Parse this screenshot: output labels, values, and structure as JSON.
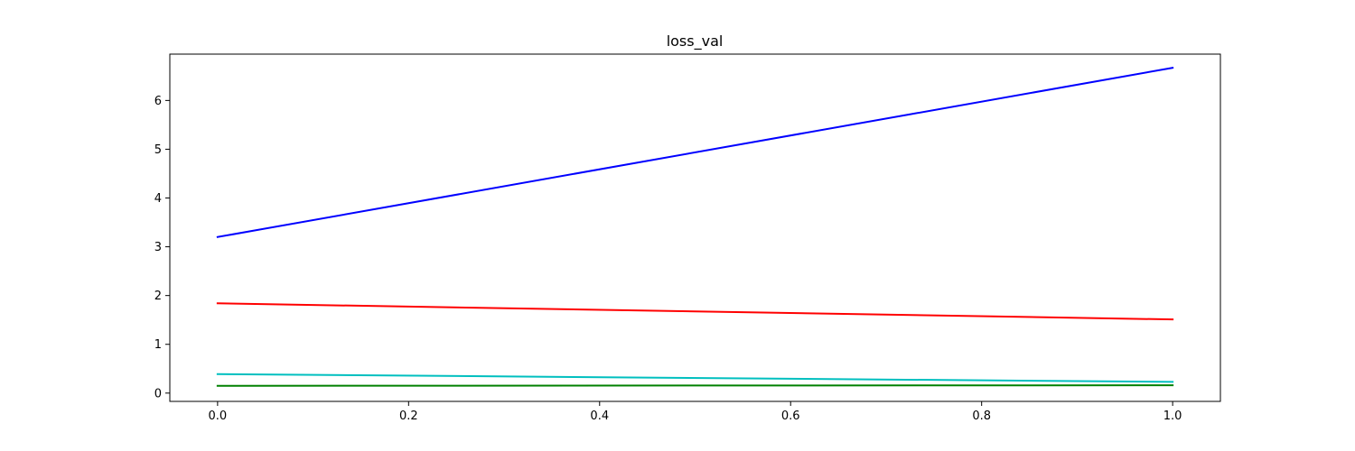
{
  "chart_data": {
    "type": "line",
    "title": "loss_val",
    "xlabel": "",
    "ylabel": "",
    "xlim": [
      -0.05,
      1.05
    ],
    "ylim": [
      -0.17,
      6.95
    ],
    "xticks": [
      0.0,
      0.2,
      0.4,
      0.6,
      0.8,
      1.0
    ],
    "xtick_labels": [
      "0.0",
      "0.2",
      "0.4",
      "0.6",
      "0.8",
      "1.0"
    ],
    "yticks": [
      0,
      1,
      2,
      3,
      4,
      5,
      6
    ],
    "ytick_labels": [
      "0",
      "1",
      "2",
      "3",
      "4",
      "5",
      "6"
    ],
    "grid": false,
    "legend": "none",
    "x": [
      0.0,
      1.0
    ],
    "series": [
      {
        "color": "#0000ff",
        "values": [
          3.2,
          6.67
        ]
      },
      {
        "color": "#ff0000",
        "values": [
          1.84,
          1.51
        ]
      },
      {
        "color": "#00bfbf",
        "values": [
          0.39,
          0.23
        ]
      },
      {
        "color": "#008000",
        "values": [
          0.15,
          0.16
        ]
      }
    ]
  }
}
